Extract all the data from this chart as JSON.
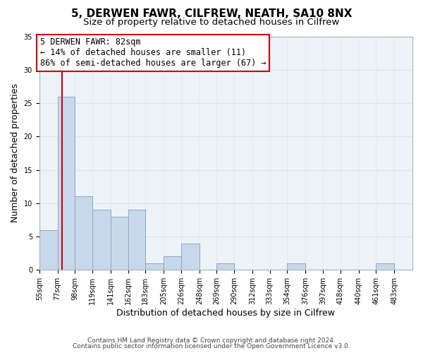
{
  "title": "5, DERWEN FAWR, CILFREW, NEATH, SA10 8NX",
  "subtitle": "Size of property relative to detached houses in Cilfrew",
  "xlabel": "Distribution of detached houses by size in Cilfrew",
  "ylabel": "Number of detached properties",
  "bin_labels": [
    "55sqm",
    "77sqm",
    "98sqm",
    "119sqm",
    "141sqm",
    "162sqm",
    "183sqm",
    "205sqm",
    "226sqm",
    "248sqm",
    "269sqm",
    "290sqm",
    "312sqm",
    "333sqm",
    "354sqm",
    "376sqm",
    "397sqm",
    "418sqm",
    "440sqm",
    "461sqm",
    "483sqm"
  ],
  "bin_edges": [
    55,
    77,
    98,
    119,
    141,
    162,
    183,
    205,
    226,
    248,
    269,
    290,
    312,
    333,
    354,
    376,
    397,
    418,
    440,
    461,
    483
  ],
  "bar_heights": [
    6,
    26,
    11,
    9,
    8,
    9,
    1,
    2,
    4,
    0,
    1,
    0,
    0,
    0,
    1,
    0,
    0,
    0,
    0,
    1,
    0
  ],
  "bar_color": "#c8d8eb",
  "bar_edge_color": "#8aa8c8",
  "grid_color": "#d8e4f0",
  "background_color": "#ffffff",
  "plot_bg_color": "#eef3f8",
  "vline_x": 82,
  "vline_color": "#cc0000",
  "annotation_text": "5 DERWEN FAWR: 82sqm\n← 14% of detached houses are smaller (11)\n86% of semi-detached houses are larger (67) →",
  "annotation_box_color": "#ffffff",
  "annotation_box_edge": "#cc0000",
  "ylim": [
    0,
    35
  ],
  "yticks": [
    0,
    5,
    10,
    15,
    20,
    25,
    30,
    35
  ],
  "footer_line1": "Contains HM Land Registry data © Crown copyright and database right 2024.",
  "footer_line2": "Contains public sector information licensed under the Open Government Licence v3.0.",
  "title_fontsize": 11,
  "subtitle_fontsize": 9.5,
  "axis_label_fontsize": 9,
  "tick_fontsize": 7,
  "annotation_fontsize": 8.5,
  "footer_fontsize": 6.5
}
